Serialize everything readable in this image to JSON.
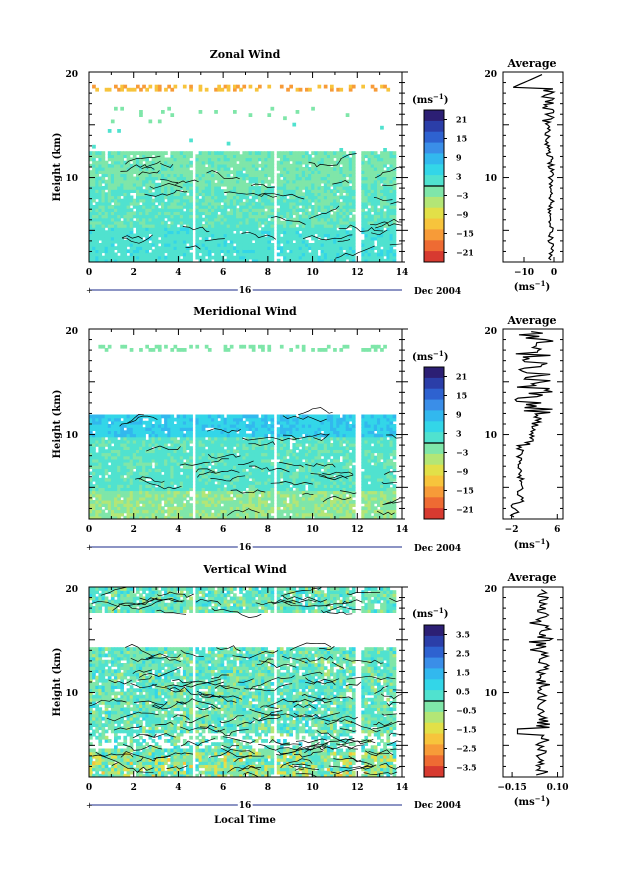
{
  "colorscale": [
    "#2c1f74",
    "#2b3ea8",
    "#2e62d0",
    "#3a8ee8",
    "#32b8ee",
    "#33d6e8",
    "#50e2cf",
    "#7fe6a9",
    "#b3e676",
    "#e2e048",
    "#f7c43c",
    "#f79b38",
    "#ee6b33",
    "#d73a30"
  ],
  "x_ticks": [
    "0",
    "2",
    "4",
    "6",
    "8",
    "10",
    "12",
    "14"
  ],
  "y_ticks": [
    "20",
    "10"
  ],
  "date_marker": "16",
  "date_label": "Dec 2004",
  "unit_label": "(ms",
  "unit_exp": "−1",
  "profile_title": "Average",
  "xlabel": "Local Time",
  "ylabel": "Height (km)",
  "chart_data": [
    {
      "type": "heatmap",
      "title": "Zonal Wind",
      "xlim": [
        0,
        14
      ],
      "ylim": [
        2,
        20
      ],
      "colorbar_ticks": [
        "21",
        "15",
        "9",
        "3",
        "−3",
        "−9",
        "−15",
        "−21"
      ],
      "colorbar_range": [
        -24,
        24
      ],
      "profile": {
        "xlim": [
          -17,
          3
        ],
        "xticks": [
          "−10",
          "0"
        ],
        "xvals": [
          -10,
          0
        ]
      }
    },
    {
      "type": "heatmap",
      "title": "Meridional Wind",
      "xlim": [
        0,
        14
      ],
      "ylim": [
        2,
        20
      ],
      "colorbar_ticks": [
        "21",
        "15",
        "9",
        "3",
        "−3",
        "−9",
        "−15",
        "−21"
      ],
      "colorbar_range": [
        -24,
        24
      ],
      "profile": {
        "xlim": [
          -3.5,
          7
        ],
        "xticks": [
          "−2",
          "6"
        ],
        "xvals": [
          -2,
          6
        ]
      }
    },
    {
      "type": "heatmap",
      "title": "Vertical Wind",
      "xlim": [
        0,
        14
      ],
      "ylim": [
        2,
        20
      ],
      "colorbar_ticks": [
        "3.5",
        "2.5",
        "1.5",
        "0.5",
        "−0.5",
        "−1.5",
        "−2.5",
        "−3.5"
      ],
      "colorbar_range": [
        -4,
        4
      ],
      "profile": {
        "xlim": [
          -0.2,
          0.13
        ],
        "xticks": [
          "−0.15",
          "0.10"
        ],
        "xvals": [
          -0.15,
          0.1
        ]
      }
    }
  ]
}
